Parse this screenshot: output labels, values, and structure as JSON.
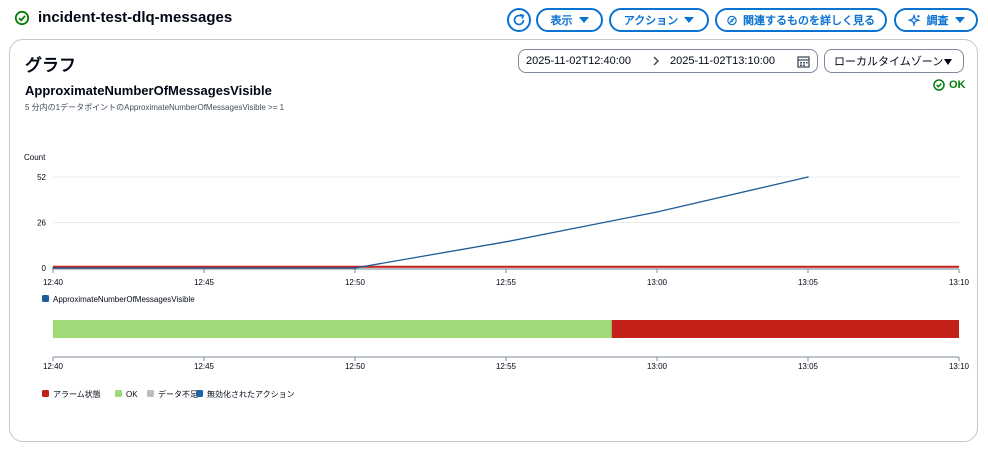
{
  "header": {
    "title": "incident-test-dlq-messages",
    "buttons": {
      "view": "表示",
      "actions": "アクション",
      "explore": "関連するものを詳しく見る",
      "investigate": "調査"
    }
  },
  "graph": {
    "heading": "グラフ",
    "date_start": "2025-11-02T12:40:00",
    "date_end": "2025-11-02T13:10:00",
    "timezone": "ローカルタイムゾーン",
    "metric_title": "ApproximateNumberOfMessagesVisible",
    "metric_subtitle": "5 分内の1データポイントのApproximateNumberOfMessagesVisible >= 1",
    "state": "OK"
  },
  "colors": {
    "accent": "#0972d3",
    "metric_line": "#1f5c99",
    "threshold": "#c8201a",
    "ok": "#a0d977",
    "alarm": "#c3201a",
    "insufficient": "#bdbdbd",
    "disabled_action": "#1f66a6"
  },
  "chart_data": [
    {
      "type": "line",
      "ylabel": "Count",
      "ylim": [
        0,
        52
      ],
      "yticks": [
        "0",
        "26",
        "52"
      ],
      "x_ticks": [
        "12:40",
        "12:45",
        "12:50",
        "12:55",
        "13:00",
        "13:05",
        "13:10"
      ],
      "xlim": [
        "12:40",
        "13:10"
      ],
      "grid": true,
      "series": [
        {
          "name": "ApproximateNumberOfMessagesVisible",
          "x": [
            "12:40",
            "12:50",
            "12:55",
            "13:00",
            "13:05"
          ],
          "y": [
            0,
            0,
            15,
            32,
            52
          ]
        }
      ],
      "threshold": 1,
      "legend": [
        "ApproximateNumberOfMessagesVisible"
      ],
      "legend_position": "bottom-left"
    },
    {
      "type": "bar",
      "x_ticks": [
        "12:40",
        "12:45",
        "12:50",
        "12:55",
        "13:00",
        "13:05",
        "13:10"
      ],
      "segments": [
        {
          "state": "OK",
          "start": "12:40",
          "end": "12:58:30"
        },
        {
          "state": "アラーム状態",
          "start": "12:58:30",
          "end": "13:10"
        }
      ],
      "legend": [
        "アラーム状態",
        "OK",
        "データ不足",
        "無効化されたアクション"
      ],
      "legend_position": "bottom-left"
    }
  ]
}
